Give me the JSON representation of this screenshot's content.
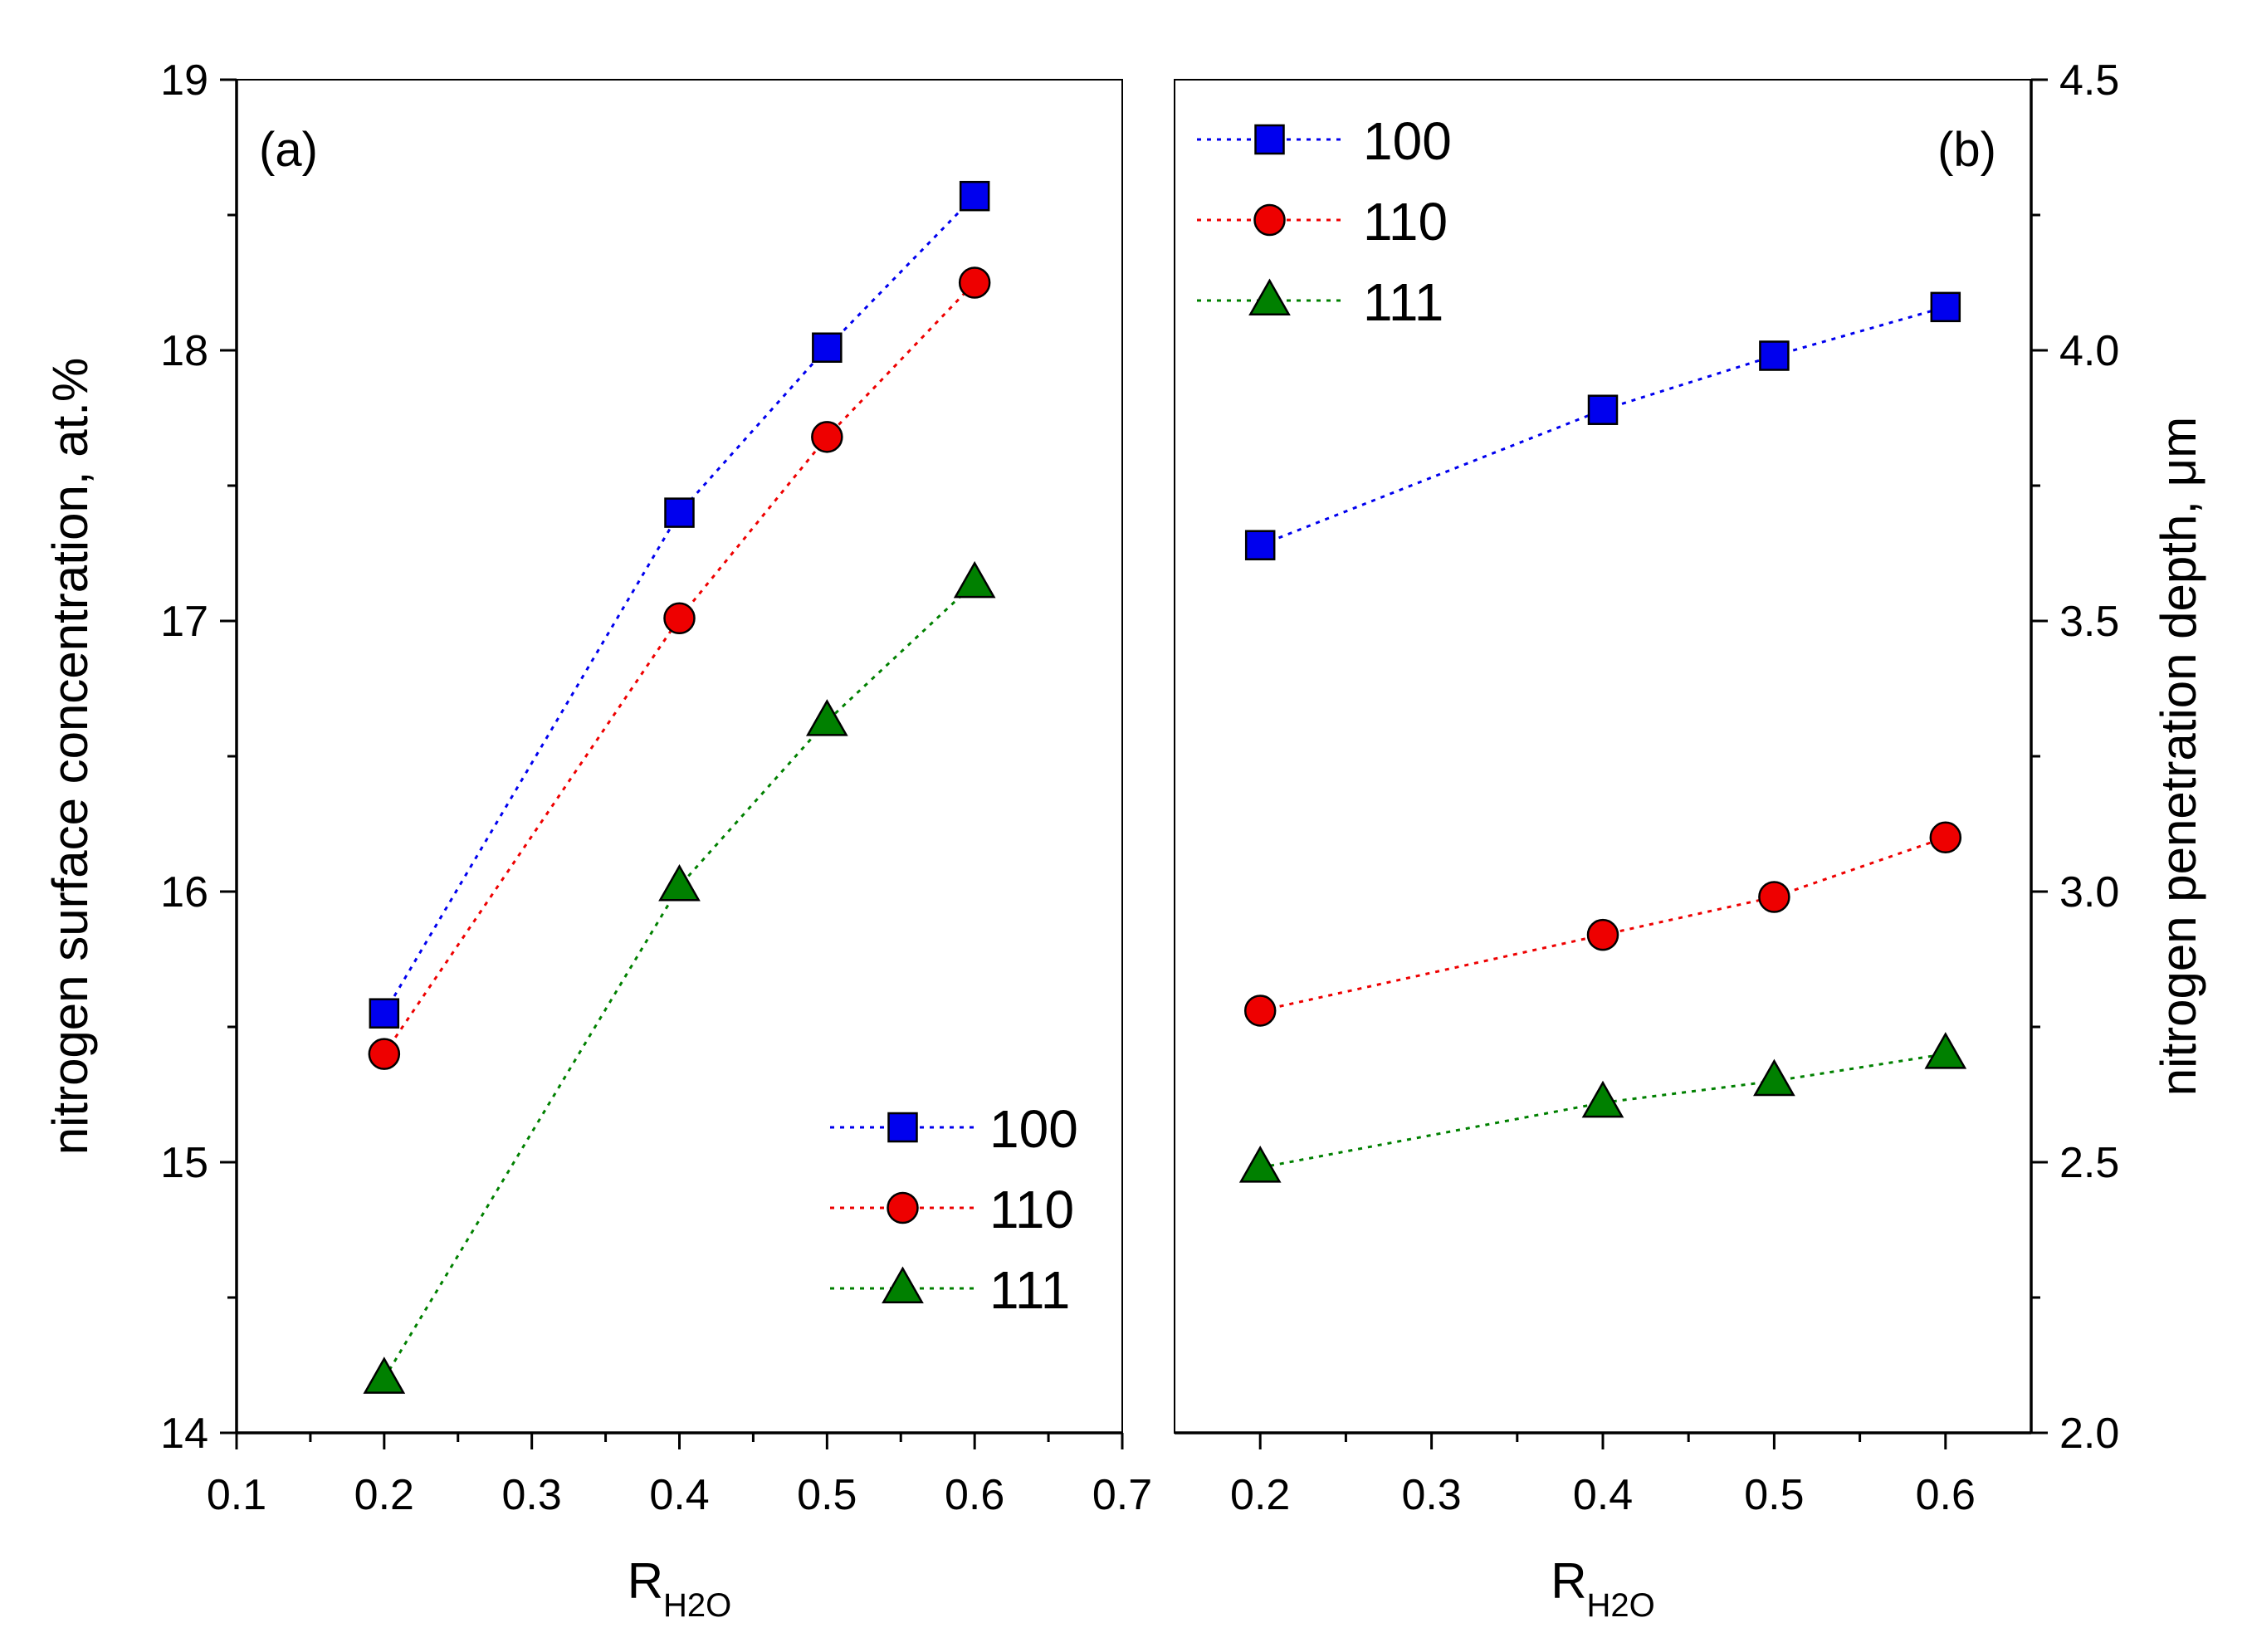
{
  "chart_data": [
    {
      "type": "line",
      "panel_label": "(a)",
      "xlabel_main": "R",
      "xlabel_sub": "H2O",
      "ylabel": "nitrogen surface concentration, at.%",
      "xlim": [
        0.1,
        0.7
      ],
      "ylim": [
        14,
        19
      ],
      "x_ticks": [
        0.1,
        0.2,
        0.3,
        0.4,
        0.5,
        0.6,
        0.7
      ],
      "x_tick_labels": [
        "0.1",
        "0.2",
        "0.3",
        "0.4",
        "0.5",
        "0.6",
        "0.7"
      ],
      "y_ticks": [
        14,
        15,
        16,
        17,
        18,
        19
      ],
      "y_tick_labels": [
        "14",
        "15",
        "16",
        "17",
        "18",
        "19"
      ],
      "y_axis_side": "left",
      "grid": false,
      "legend_position": "bottom-right",
      "x": [
        0.2,
        0.4,
        0.5,
        0.6
      ],
      "series": [
        {
          "name": "100",
          "marker": "square",
          "color": "#0000ee",
          "values": [
            15.55,
            17.4,
            18.01,
            18.57
          ]
        },
        {
          "name": "110",
          "marker": "circle",
          "color": "#ee0000",
          "values": [
            15.4,
            17.01,
            17.68,
            18.25
          ]
        },
        {
          "name": "111",
          "marker": "triangle",
          "color": "#008000",
          "values": [
            14.2,
            16.02,
            16.63,
            17.14
          ]
        }
      ]
    },
    {
      "type": "line",
      "panel_label": "(b)",
      "xlabel_main": "R",
      "xlabel_sub": "H2O",
      "ylabel": "nitrogen penetration depth, μm",
      "xlim": [
        0.15,
        0.65
      ],
      "ylim": [
        2.0,
        4.5
      ],
      "x_ticks": [
        0.2,
        0.3,
        0.4,
        0.5,
        0.6
      ],
      "x_tick_labels": [
        "0.2",
        "0.3",
        "0.4",
        "0.5",
        "0.6"
      ],
      "y_ticks": [
        2.0,
        2.5,
        3.0,
        3.5,
        4.0,
        4.5
      ],
      "y_tick_labels": [
        "2.0",
        "2.5",
        "3.0",
        "3.5",
        "4.0",
        "4.5"
      ],
      "y_axis_side": "right",
      "grid": false,
      "legend_position": "top-left",
      "x": [
        0.2,
        0.4,
        0.5,
        0.6
      ],
      "series": [
        {
          "name": "100",
          "marker": "square",
          "color": "#0000ee",
          "values": [
            3.64,
            3.89,
            3.99,
            4.08
          ]
        },
        {
          "name": "110",
          "marker": "circle",
          "color": "#ee0000",
          "values": [
            2.78,
            2.92,
            2.99,
            3.1
          ]
        },
        {
          "name": "111",
          "marker": "triangle",
          "color": "#008000",
          "values": [
            2.49,
            2.61,
            2.65,
            2.7
          ]
        }
      ]
    }
  ]
}
